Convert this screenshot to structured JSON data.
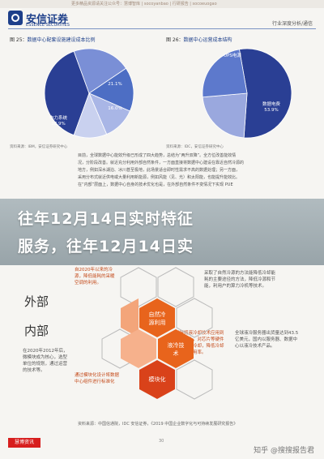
{
  "topbar": {
    "text": "更多精品资源请关注公众号：慧博智库 | socoyanbao | 行研报告 | socoeuogao"
  },
  "brand": {
    "name_cn": "安信证券",
    "name_en": "ESSENCE SECURITIES"
  },
  "header": {
    "right": "行业深度分析/通信"
  },
  "fig1": {
    "title_prefix": "图 25：",
    "title": "数据中心配套设施建设成本比例",
    "source": "资料来源：IBM，安信证券研究中心",
    "chart_data": {
      "type": "pie",
      "slices": [
        {
          "label": "电力系统",
          "value": 38.9
        },
        {
          "label": "制冷系统",
          "value": 21.1
        },
        {
          "label": "服务器",
          "value": 16.0
        },
        {
          "label": "网络设备",
          "value": 12.0
        },
        {
          "label": "其他",
          "value": 12.0
        }
      ]
    },
    "labels": [
      "电力系统\n38.9%",
      "21.1%",
      "16.0%"
    ]
  },
  "fig2": {
    "title_prefix": "图 26：",
    "title": "数据中心运营成本结构",
    "source": "资料来源：IDC，安信证券研究中心",
    "chart_data": {
      "type": "pie",
      "slices": [
        {
          "label": "数据电费",
          "value": 53.9
        },
        {
          "label": "UPS电源",
          "value": 22.5
        },
        {
          "label": "其他",
          "value": 23.6
        }
      ]
    },
    "labels": [
      "数据电费\n53.9%",
      "UPS电源"
    ]
  },
  "body": {
    "lines": [
      "目前，全球数据中心能效升级已形成了四大趋势，总结为“两升双降”。全方位改善能效情",
      "况，分阶段改善。就近充分利用外部自然条件，一方面直接将数据中心建设在靠近自然冷源的",
      "地方，例如深水湖泊、冰川甚至极地，此场景适合即时性需求不高的数据处理；另一方面，",
      "采用分布式就近供电或大量利用新能源，例如风能（见、光）和太阳能，也能提升能效比。",
      "在“内部”层面上，数据中心自身的技术优化也是，在外部自然条件不变情况下实现 PUE"
    ]
  },
  "banner": {
    "line1": "往年12月14日实时特征",
    "line2": "服务，往年12月14日实"
  },
  "diagram": {
    "outer_label": "外部",
    "inner_label": "内部",
    "hexes": {
      "natural": "自然冷\n源利用",
      "liquid": "液冷技\n术",
      "modular": "模块化"
    },
    "left_note": "自2020年以来的冷源，降低能耗的采暖空调的利用。",
    "right_note_top": "采取了自然冷源的方法能降低冷却能耗的主要途径的方法，降低冷源和节能，利用户的算力冷机等技术。",
    "inner_note": "在2020年2012年后，微模块成为核心，选型单位的规划，通过运营的技术等。",
    "right_note_mid": "直接将液冷却技术应用到服务器上，对芯片等硬件设备进行冷却，降低冷却能耗的利用率。",
    "right_note_low": "全球液冷服务器出货量达到43.5亿美元，国内以服务器、数据中心以液冷技术产品。",
    "left_note2": "通过模块化设计将数据中心组件进行标准化"
  },
  "bottom": {
    "source": "资料来源：中国信通院，IDC 安信证券，《2019 中国企业数字化与可持续发展研究报告》"
  },
  "page_num": "30",
  "footer": {
    "badge": "慧博资讯",
    "watermark": "知乎 @搜搜报告君"
  }
}
